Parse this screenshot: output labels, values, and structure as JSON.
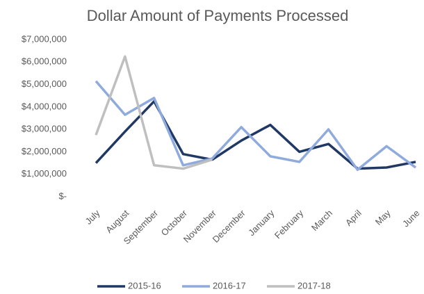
{
  "chart_data": {
    "type": "line",
    "title": "Dollar Amount of Payments Processed",
    "categories": [
      "July",
      "August",
      "September",
      "October",
      "November",
      "December",
      "January",
      "February",
      "March",
      "April",
      "May",
      "June"
    ],
    "series": [
      {
        "name": "2015-16",
        "color": "#1f3864",
        "values": [
          1500000,
          2900000,
          4250000,
          1900000,
          1650000,
          2500000,
          3200000,
          2000000,
          2350000,
          1250000,
          1300000,
          1550000
        ]
      },
      {
        "name": "2016-17",
        "color": "#8faadc",
        "values": [
          5150000,
          3650000,
          4400000,
          1400000,
          1700000,
          3100000,
          1800000,
          1550000,
          3000000,
          1200000,
          2250000,
          1300000
        ]
      },
      {
        "name": "2017-18",
        "color": "#bfbfbf",
        "values": [
          2750000,
          6250000,
          1400000,
          1250000,
          1650000,
          null,
          null,
          null,
          null,
          null,
          null,
          null
        ]
      }
    ],
    "ylim": [
      0,
      7000000
    ],
    "yticks": [
      {
        "value": 0,
        "label": "$-"
      },
      {
        "value": 1000000,
        "label": "$1,000,000"
      },
      {
        "value": 2000000,
        "label": "$2,000,000"
      },
      {
        "value": 3000000,
        "label": "$3,000,000"
      },
      {
        "value": 4000000,
        "label": "$4,000,000"
      },
      {
        "value": 5000000,
        "label": "$5,000,000"
      },
      {
        "value": 6000000,
        "label": "$6,000,000"
      },
      {
        "value": 7000000,
        "label": "$7,000,000"
      }
    ],
    "grid": false,
    "legend": "bottom"
  }
}
